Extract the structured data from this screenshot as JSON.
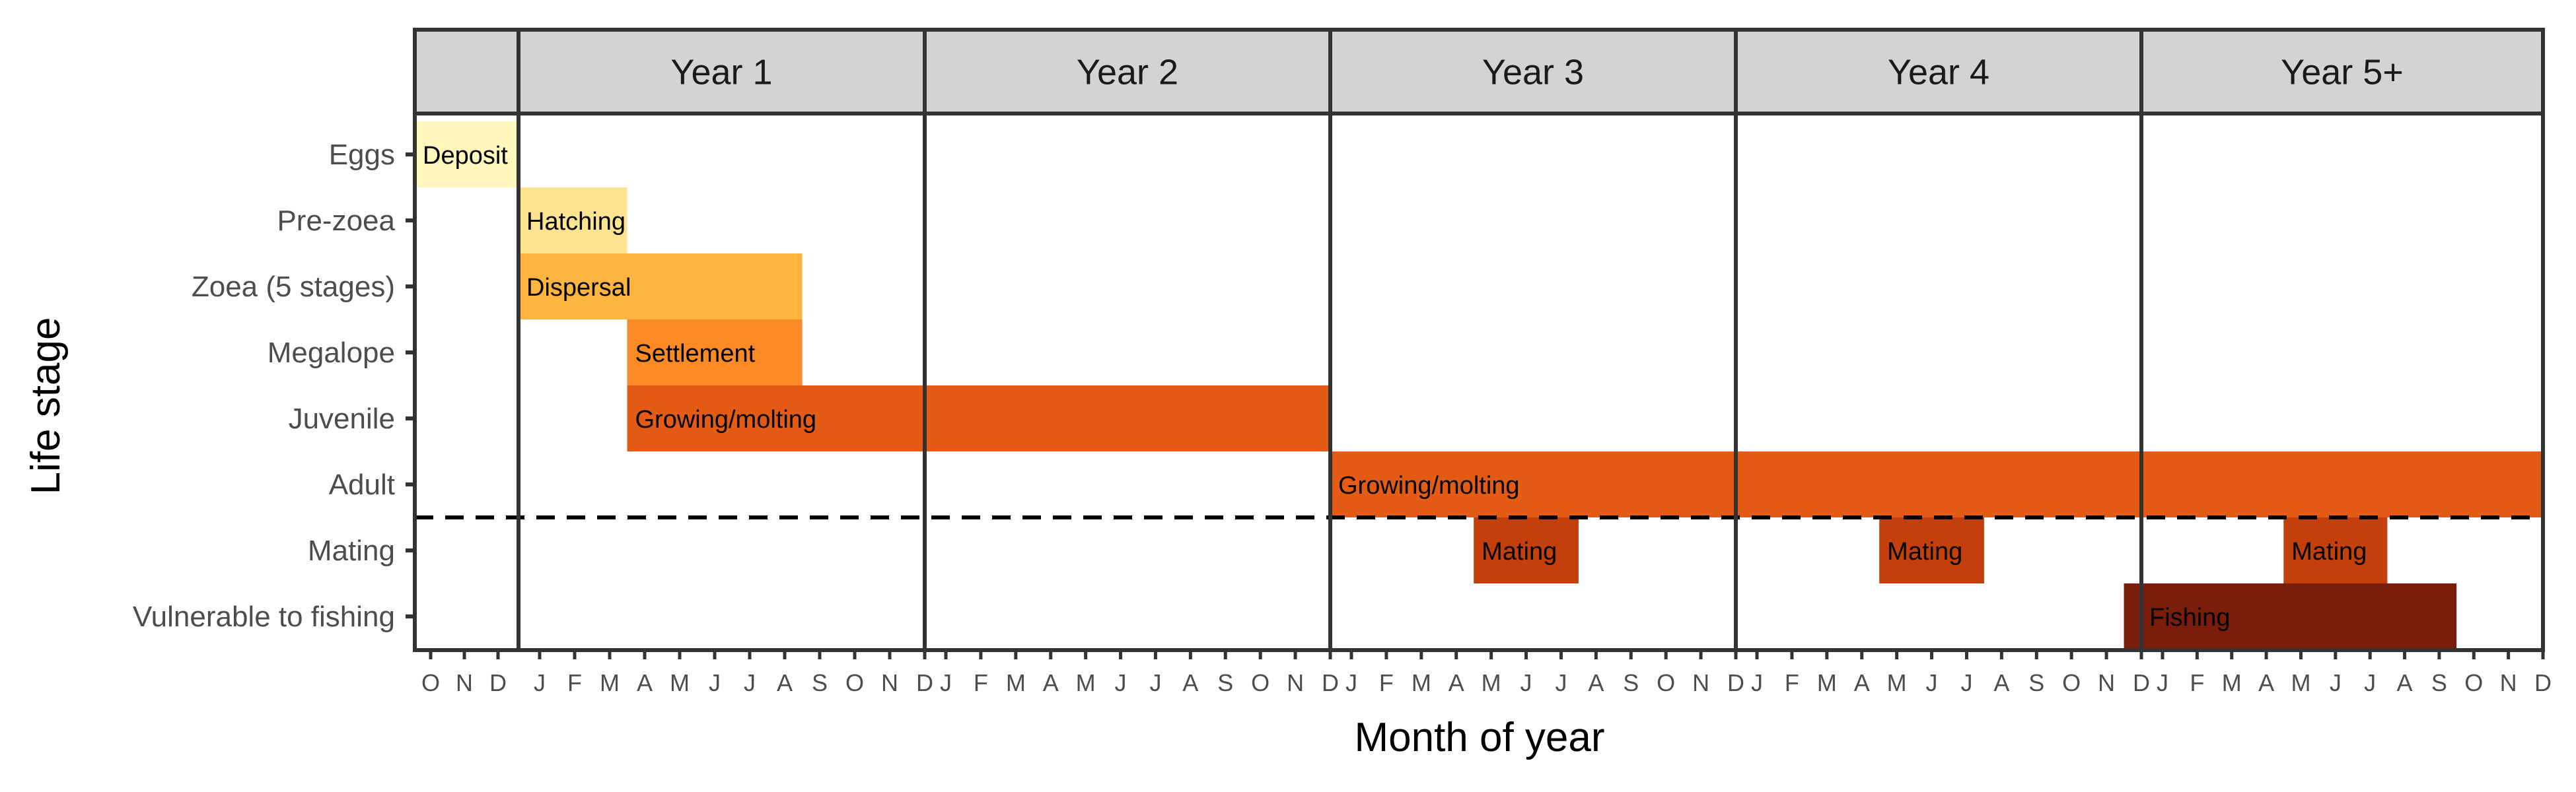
{
  "chart_data": {
    "type": "gantt",
    "xlabel": "Month of year",
    "ylabel": "Life stage",
    "panels": [
      "",
      "Year 1",
      "Year 2",
      "Year 3",
      "Year 4",
      "Year 5+"
    ],
    "panel_months": [
      [
        "O",
        "N",
        "D"
      ],
      [
        "J",
        "F",
        "M",
        "A",
        "M",
        "J",
        "J",
        "A",
        "S",
        "O",
        "N",
        "D"
      ],
      [
        "J",
        "F",
        "M",
        "A",
        "M",
        "J",
        "J",
        "A",
        "S",
        "O",
        "N",
        "D"
      ],
      [
        "J",
        "F",
        "M",
        "A",
        "M",
        "J",
        "J",
        "A",
        "S",
        "O",
        "N",
        "D"
      ],
      [
        "J",
        "F",
        "M",
        "A",
        "M",
        "J",
        "J",
        "A",
        "S",
        "O",
        "N",
        "D"
      ],
      [
        "J",
        "F",
        "M",
        "A",
        "M",
        "J",
        "J",
        "A",
        "S",
        "O",
        "N",
        "D"
      ]
    ],
    "stages": [
      "Eggs",
      "Pre-zoea",
      "Zoea (5 stages)",
      "Megalope",
      "Juvenile",
      "Adult",
      "Mating",
      "Vulnerable to fishing"
    ],
    "bars": [
      {
        "stage": "Eggs",
        "panel": 0,
        "start_month": "O",
        "end_month": "D",
        "label": "Deposit",
        "color": "#FFF7BC"
      },
      {
        "stage": "Pre-zoea",
        "panel": 1,
        "start_month": "J",
        "end_month": "M",
        "label": "Hatching",
        "color": "#FEE391"
      },
      {
        "stage": "Zoea (5 stages)",
        "panel": 1,
        "start_month": "J",
        "end_month": "S",
        "label": "Dispersal",
        "color": "#FDB53F"
      },
      {
        "stage": "Megalope",
        "panel": 1,
        "start_month": "A",
        "end_month": "S",
        "label": "Settlement",
        "color": "#FB8A24"
      },
      {
        "stage": "Juvenile",
        "panel": 1,
        "start_month": "A",
        "end_month": "D",
        "label": "Growing/molting",
        "color": "#E35B15"
      },
      {
        "stage": "Juvenile",
        "panel": 2,
        "start_month": "J",
        "end_month": "D",
        "label": "",
        "color": "#E35B15"
      },
      {
        "stage": "Adult",
        "panel": 3,
        "start_month": "J",
        "end_month": "D",
        "label": "Growing/molting",
        "color": "#E35B15"
      },
      {
        "stage": "Adult",
        "panel": 4,
        "start_month": "J",
        "end_month": "D",
        "label": "",
        "color": "#E35B15"
      },
      {
        "stage": "Adult",
        "panel": 5,
        "start_month": "J",
        "end_month": "D",
        "label": "",
        "color": "#E35B15"
      },
      {
        "stage": "Mating",
        "panel": 3,
        "start_month": "M",
        "end_month": "J",
        "label": "Mating",
        "color": "#C3400C"
      },
      {
        "stage": "Mating",
        "panel": 4,
        "start_month": "M",
        "end_month": "J",
        "label": "Mating",
        "color": "#C3400C"
      },
      {
        "stage": "Mating",
        "panel": 5,
        "start_month": "M",
        "end_month": "J",
        "label": "Mating",
        "color": "#C3400C"
      },
      {
        "stage": "Vulnerable to fishing",
        "panel": 4,
        "start_month": "D",
        "end_month": "D",
        "label": "",
        "color": "#7A1D0B"
      },
      {
        "stage": "Vulnerable to fishing",
        "panel": 5,
        "start_month": "J",
        "end_month": "S",
        "label": "Fishing",
        "color": "#7A1D0B"
      }
    ],
    "reference_line": {
      "between_stages": [
        "Adult",
        "Mating"
      ],
      "style": "dashed"
    },
    "grid": false,
    "legend": "none"
  }
}
